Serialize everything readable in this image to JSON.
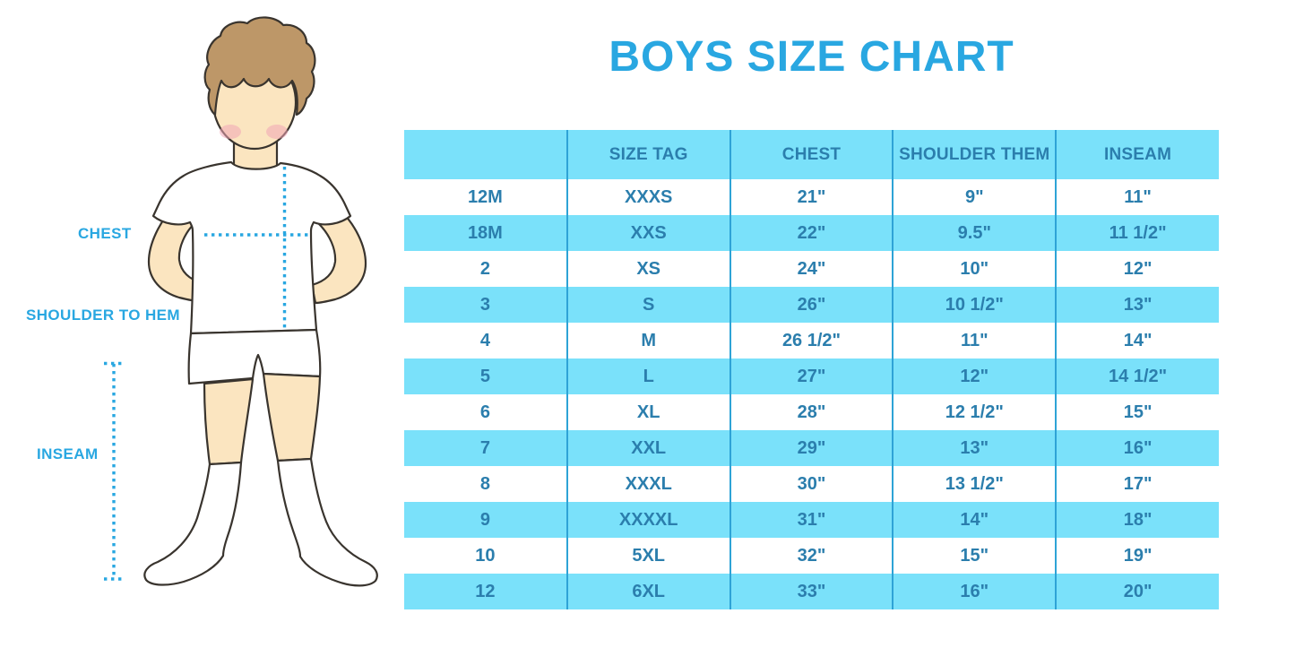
{
  "chart_data": {
    "type": "table",
    "title": "BOYS SIZE CHART",
    "columns": [
      "",
      "SIZE TAG",
      "CHEST",
      "SHOULDER THEM",
      "INSEAM"
    ],
    "rows": [
      [
        "12M",
        "XXXS",
        "21\"",
        "9\"",
        "11\""
      ],
      [
        "18M",
        "XXS",
        "22\"",
        "9.5\"",
        "11 1/2\""
      ],
      [
        "2",
        "XS",
        "24\"",
        "10\"",
        "12\""
      ],
      [
        "3",
        "S",
        "26\"",
        "10 1/2\"",
        "13\""
      ],
      [
        "4",
        "M",
        "26 1/2\"",
        "11\"",
        "14\""
      ],
      [
        "5",
        "L",
        "27\"",
        "12\"",
        "14 1/2\""
      ],
      [
        "6",
        "XL",
        "28\"",
        "12 1/2\"",
        "15\""
      ],
      [
        "7",
        "XXL",
        "29\"",
        "13\"",
        "16\""
      ],
      [
        "8",
        "XXXL",
        "30\"",
        "13 1/2\"",
        "17\""
      ],
      [
        "9",
        "XXXXL",
        "31\"",
        "14\"",
        "18\""
      ],
      [
        "10",
        "5XL",
        "32\"",
        "15\"",
        "19\""
      ],
      [
        "12",
        "6XL",
        "33\"",
        "16\"",
        "20\""
      ]
    ],
    "layout": {
      "grid": "vertical-separators-only",
      "row_striping": "white-and-light-blue-alternating",
      "header_background": "light-blue"
    }
  },
  "figure": {
    "description": "boy-illustration-with-measurement-guides",
    "labels": {
      "chest": "CHEST",
      "shoulder_to_hem": "SHOULDER TO HEM",
      "inseam": "INSEAM"
    }
  },
  "colors": {
    "accent": "#29A7E1",
    "row_blue": "#7AE1FA",
    "table_text": "#2B7EAD",
    "grid": "#2EA3D6",
    "skin": "#FBE5C0",
    "hair": "#BD9768",
    "blush": "#F1A6B6",
    "outline": "#39342E"
  }
}
